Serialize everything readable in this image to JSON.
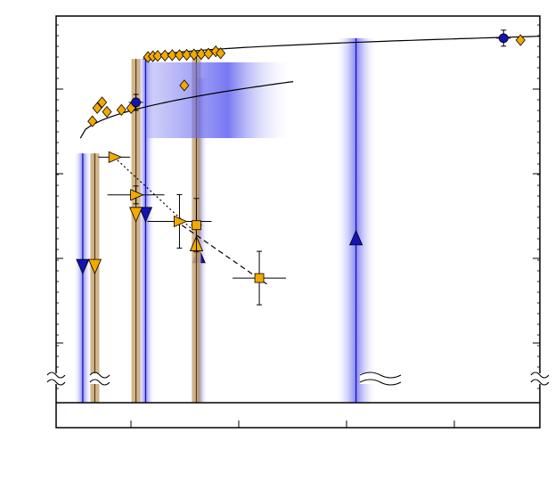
{
  "chart_data": {
    "type": "scatter",
    "title": "",
    "xlabel": "",
    "ylabel": "",
    "grid": false,
    "legend": "none",
    "colors": {
      "orange": "#f2a900",
      "blue": "#1414b4",
      "band_blue": "#5a5af0",
      "band_tan": "#c8a878",
      "dark": "#000000"
    },
    "axis_breaks": [
      "left",
      "bottom-of-plot",
      "right"
    ],
    "diamond_series": {
      "marker": "diamond",
      "color": "orange",
      "points": [
        {
          "x": 0.075,
          "y": 0.745
        },
        {
          "x": 0.085,
          "y": 0.78
        },
        {
          "x": 0.095,
          "y": 0.795
        },
        {
          "x": 0.105,
          "y": 0.77
        },
        {
          "x": 0.135,
          "y": 0.775
        },
        {
          "x": 0.155,
          "y": 0.78
        },
        {
          "x": 0.19,
          "y": 0.915
        },
        {
          "x": 0.2,
          "y": 0.917
        },
        {
          "x": 0.21,
          "y": 0.918
        },
        {
          "x": 0.225,
          "y": 0.919
        },
        {
          "x": 0.24,
          "y": 0.92
        },
        {
          "x": 0.255,
          "y": 0.92
        },
        {
          "x": 0.27,
          "y": 0.921
        },
        {
          "x": 0.285,
          "y": 0.922
        },
        {
          "x": 0.3,
          "y": 0.923
        },
        {
          "x": 0.315,
          "y": 0.924
        },
        {
          "x": 0.33,
          "y": 0.93
        },
        {
          "x": 0.34,
          "y": 0.925
        },
        {
          "x": 0.265,
          "y": 0.84
        },
        {
          "x": 0.96,
          "y": 0.96
        }
      ]
    },
    "blue_circles": {
      "marker": "circle",
      "color": "blue",
      "points": [
        {
          "x": 0.165,
          "y": 0.795
        },
        {
          "x": 0.925,
          "y": 0.965
        }
      ]
    },
    "triangle_series": {
      "marker": "triangle-right",
      "color": "orange",
      "points": [
        {
          "x": 0.12,
          "y": 0.65
        },
        {
          "x": 0.165,
          "y": 0.55
        },
        {
          "x": 0.255,
          "y": 0.48
        }
      ]
    },
    "square_series": {
      "marker": "square",
      "color": "orange",
      "points": [
        {
          "x": 0.29,
          "y": 0.47
        },
        {
          "x": 0.42,
          "y": 0.33
        }
      ]
    },
    "curves": [
      {
        "name": "",
        "from": 0.05,
        "to": 0.49,
        "y0": 0.7,
        "y1": 0.85
      },
      {
        "name": "",
        "from": 0.18,
        "to": 1.0,
        "y0": 0.91,
        "y1": 0.97
      }
    ],
    "bands": [
      {
        "x": 0.055,
        "color": "band_blue",
        "top": 0.66,
        "arrow": "down"
      },
      {
        "x": 0.08,
        "color": "band_tan",
        "top": 0.66,
        "arrow": "down"
      },
      {
        "x": 0.185,
        "color": "band_blue",
        "top": 0.91,
        "arrow": "down"
      },
      {
        "x": 0.165,
        "color": "band_tan",
        "top": 0.91,
        "arrow": "down"
      },
      {
        "x": 0.295,
        "color": "band_blue",
        "top": 0.86,
        "arrow": "up"
      },
      {
        "x": 0.29,
        "color": "band_tan",
        "top": 0.93,
        "arrow": "up"
      },
      {
        "x": 0.62,
        "color": "band_blue",
        "top": 0.965,
        "arrow": "up"
      }
    ]
  }
}
